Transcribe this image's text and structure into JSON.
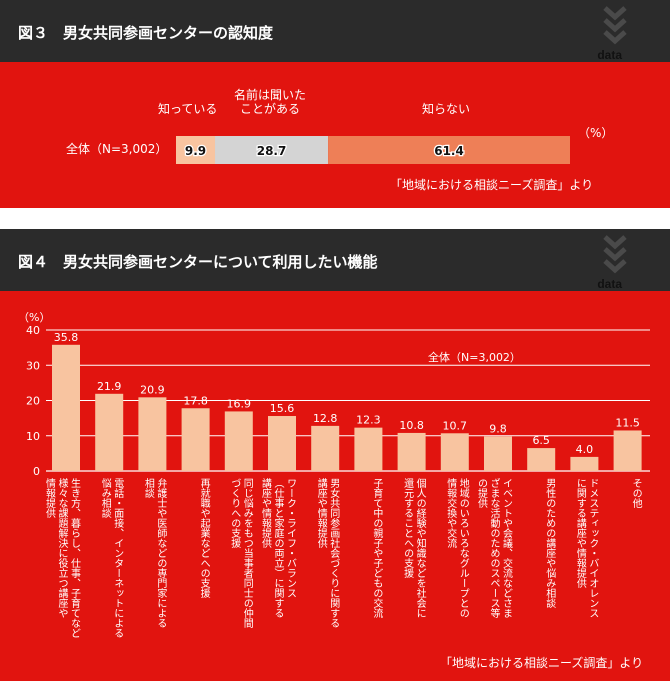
{
  "figure3": {
    "title": "図３　男女共同参画センターの認知度",
    "data_tag": "data",
    "source": "「地域における相談ニーズ調査」より",
    "unit": "（%）",
    "chart_data": {
      "type": "bar",
      "orientation": "horizontal-stacked",
      "categories": [
        "全体（N=3,002）"
      ],
      "series": [
        {
          "name": "知っている",
          "values": [
            9.9
          ],
          "color": "#f8c4a0"
        },
        {
          "name": "名前は聞いたことがある",
          "values": [
            28.7
          ],
          "color": "#d4d4d4"
        },
        {
          "name": "知らない",
          "values": [
            61.4
          ],
          "color": "#ee7f57"
        }
      ],
      "labels": {
        "row": "全体（N=3,002）",
        "s1": "知っている",
        "s2_line1": "名前は聞いた",
        "s2_line2": "ことがある",
        "s3": "知らない",
        "v1": "9.9",
        "v2": "28.7",
        "v3": "61.4"
      },
      "xlim": [
        0,
        100
      ]
    }
  },
  "figure4": {
    "title": "図４　男女共同参画センターについて利用したい機能",
    "data_tag": "data",
    "source": "「地域における相談ニーズ調査」より",
    "chart_data": {
      "type": "bar",
      "ylabel": "（%）",
      "ylim": [
        0,
        40
      ],
      "yticks": [
        0,
        10,
        20,
        30,
        40
      ],
      "bar_color": "#f8c4a0",
      "annotation": "全体（N=3,002）",
      "categories": [
        "生き方、暮らし、仕事、子育てなど様々な課題解決に役立つ講座や情報提供",
        "電話・面接、インターネットによる悩み相談",
        "弁護士や医師などの専門家による相談",
        "再就職や起業などへの支援",
        "同じ悩みをもつ当事者同士の仲間づくりへの支援",
        "ワーク・ライフ・バランス（仕事と家庭の両立）に関する講座や情報提供",
        "男女共同参画社会づくりに関する講座や情報提供",
        "子育て中の親子や子どもの交流",
        "個人の経験や知識などを社会に還元することへの支援",
        "地域のいろいろなグループとの情報交換や交流",
        "イベントや会議、交流などさまざまな活動のためのスペース等の提供",
        "男性のための講座や悩み相談",
        "ドメスティック・バイオレンスに関する講座や情報提供",
        "その他"
      ],
      "category_lines": [
        [
          "生き方、暮らし、仕事、子育てなど",
          "様々な課題解決に役立つ講座や",
          "情報提供"
        ],
        [
          "電話・面接、インターネットによる",
          "悩み相談"
        ],
        [
          "弁護士や医師などの専門家による",
          "相談"
        ],
        [
          "再就職や起業などへの支援"
        ],
        [
          "同じ悩みをもつ当事者同士の仲間",
          "づくりへの支援"
        ],
        [
          "ワーク・ライフ・バランス",
          "（仕事と家庭の両立）に関する",
          "講座や情報提供"
        ],
        [
          "男女共同参画社会づくりに関する",
          "講座や情報提供"
        ],
        [
          "子育て中の親子や子どもの交流"
        ],
        [
          "個人の経験や知識などを社会に",
          "還元することへの支援"
        ],
        [
          "地域のいろいろなグループとの",
          "情報交換や交流"
        ],
        [
          "イベントや会議、交流などさま",
          "ざまな活動のためのスペース等",
          "の提供"
        ],
        [
          "男性のための講座や悩み相談"
        ],
        [
          "ドメスティック・バイオレンス",
          "に関する講座や情報提供"
        ],
        [
          "その他"
        ]
      ],
      "values": [
        35.8,
        21.9,
        20.9,
        17.8,
        16.9,
        15.6,
        12.8,
        12.3,
        10.8,
        10.7,
        9.8,
        6.5,
        4.0,
        11.5
      ],
      "value_labels": [
        "35.8",
        "21.9",
        "20.9",
        "17.8",
        "16.9",
        "15.6",
        "12.8",
        "12.3",
        "10.8",
        "10.7",
        "9.8",
        "6.5",
        "4.0",
        "11.5"
      ]
    }
  },
  "colors": {
    "panel_red": "#e1140f",
    "header_dark": "#2b2b2b",
    "chevron": "#4a4a4a"
  }
}
